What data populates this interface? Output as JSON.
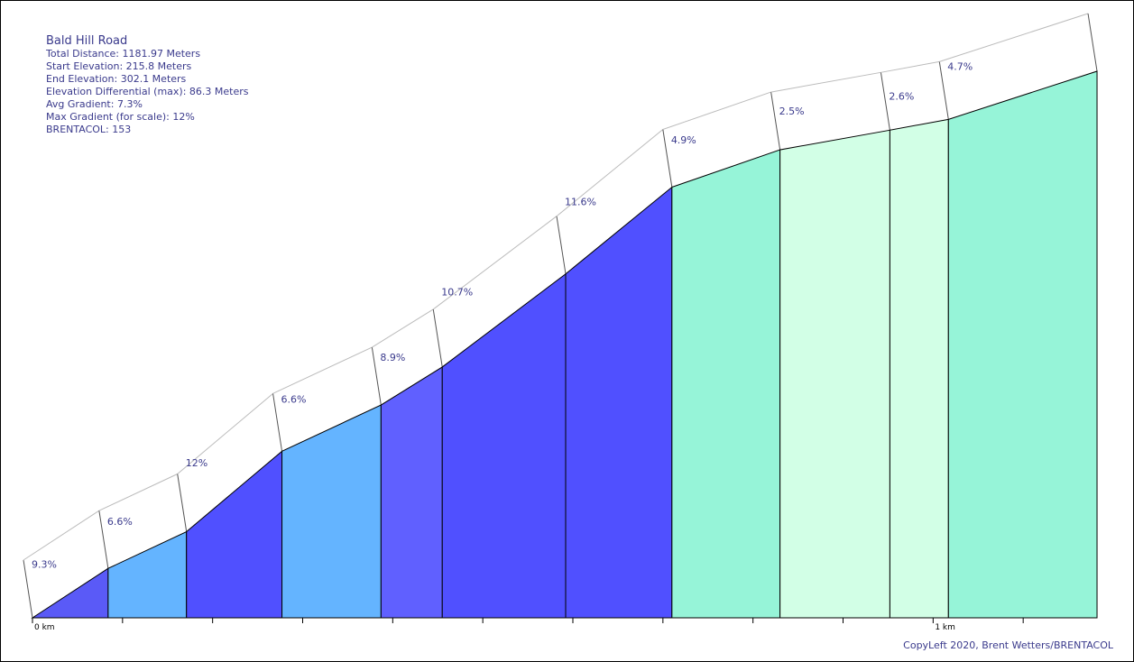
{
  "stats": {
    "title": "Bald Hill Road",
    "total_distance": "Total Distance: 1181.97 Meters",
    "start_elevation": "Start Elevation: 215.8 Meters",
    "end_elevation": "End Elevation: 302.1 Meters",
    "elevation_diff": "Elevation Differential (max): 86.3 Meters",
    "avg_gradient": "Avg Gradient: 7.3%",
    "max_gradient": "Max Gradient (for scale): 12%",
    "brentacol": "BRENTACOL: 153"
  },
  "copyleft": "CopyLeft 2020, Brent Wetters/BRENTACOL",
  "colors": {
    "stroke": "#000000",
    "band": "#bbbbbb",
    "label": "#3a3a8c"
  },
  "chart_data": {
    "type": "area",
    "title": "Bald Hill Road",
    "xlabel": "",
    "ylabel": "",
    "x_unit": "km",
    "xlim": [
      0,
      1.18197
    ],
    "ylim": [
      215.8,
      302.1
    ],
    "x_ticks": [
      {
        "value": 0,
        "label": "0 km"
      },
      {
        "value": 0.1,
        "label": ""
      },
      {
        "value": 0.2,
        "label": ""
      },
      {
        "value": 0.3,
        "label": ""
      },
      {
        "value": 0.4,
        "label": ""
      },
      {
        "value": 0.5,
        "label": ""
      },
      {
        "value": 0.6,
        "label": ""
      },
      {
        "value": 0.7,
        "label": ""
      },
      {
        "value": 0.8,
        "label": ""
      },
      {
        "value": 0.9,
        "label": ""
      },
      {
        "value": 1.0,
        "label": "1 km"
      },
      {
        "value": 1.1,
        "label": ""
      }
    ],
    "segments": [
      {
        "start_km": 0.0,
        "end_km": 0.084,
        "elev_start": 215.8,
        "elev_end": 223.6,
        "gradient": "9.3%",
        "color": "#5a5af7"
      },
      {
        "start_km": 0.084,
        "end_km": 0.171,
        "elev_start": 223.6,
        "elev_end": 229.4,
        "gradient": "6.6%",
        "color": "#64b4ff"
      },
      {
        "start_km": 0.171,
        "end_km": 0.277,
        "elev_start": 229.4,
        "elev_end": 242.1,
        "gradient": "12%",
        "color": "#5050ff"
      },
      {
        "start_km": 0.277,
        "end_km": 0.387,
        "elev_start": 242.1,
        "elev_end": 249.4,
        "gradient": "6.6%",
        "color": "#64b4ff"
      },
      {
        "start_km": 0.387,
        "end_km": 0.455,
        "elev_start": 249.4,
        "elev_end": 255.4,
        "gradient": "8.9%",
        "color": "#6060ff"
      },
      {
        "start_km": 0.455,
        "end_km": 0.592,
        "elev_start": 255.4,
        "elev_end": 270.1,
        "gradient": "10.7%",
        "color": "#5050ff"
      },
      {
        "start_km": 0.592,
        "end_km": 0.71,
        "elev_start": 270.1,
        "elev_end": 283.8,
        "gradient": "11.6%",
        "color": "#5050ff"
      },
      {
        "start_km": 0.71,
        "end_km": 0.83,
        "elev_start": 283.8,
        "elev_end": 289.7,
        "gradient": "4.9%",
        "color": "#96f4d8"
      },
      {
        "start_km": 0.83,
        "end_km": 0.952,
        "elev_start": 289.7,
        "elev_end": 292.8,
        "gradient": "2.5%",
        "color": "#d2ffe6"
      },
      {
        "start_km": 0.952,
        "end_km": 1.017,
        "elev_start": 292.8,
        "elev_end": 294.5,
        "gradient": "2.6%",
        "color": "#d2ffe6"
      },
      {
        "start_km": 1.017,
        "end_km": 1.182,
        "elev_start": 294.5,
        "elev_end": 302.1,
        "gradient": "4.7%",
        "color": "#96f4d8"
      }
    ]
  }
}
